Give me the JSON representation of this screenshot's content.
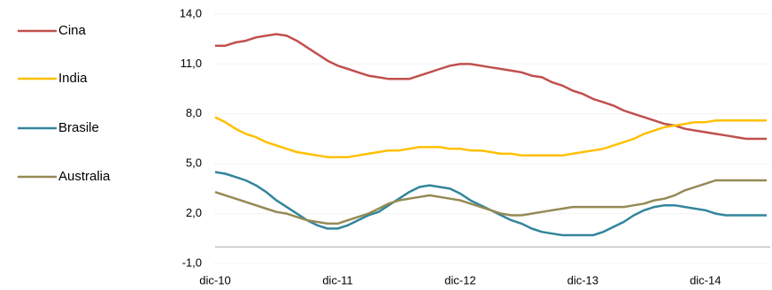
{
  "chart_data": {
    "type": "line",
    "categories": [
      "dic-10",
      null,
      null,
      null,
      null,
      null,
      null,
      null,
      null,
      null,
      null,
      null,
      "dic-11",
      null,
      null,
      null,
      null,
      null,
      null,
      null,
      null,
      null,
      null,
      null,
      "dic-12",
      null,
      null,
      null,
      null,
      null,
      null,
      null,
      null,
      null,
      null,
      null,
      "dic-13",
      null,
      null,
      null,
      null,
      null,
      null,
      null,
      null,
      null,
      null,
      null,
      "dic-14",
      null,
      null,
      null,
      null,
      null,
      null
    ],
    "series": [
      {
        "name": "Cina",
        "color": "#c0504d",
        "values": [
          12.1,
          12.1,
          12.3,
          12.4,
          12.6,
          12.7,
          12.8,
          12.7,
          12.4,
          12.0,
          11.6,
          11.2,
          10.9,
          10.7,
          10.5,
          10.3,
          10.2,
          10.1,
          10.1,
          10.1,
          10.3,
          10.5,
          10.7,
          10.9,
          11.0,
          11.0,
          10.9,
          10.8,
          10.7,
          10.6,
          10.5,
          10.3,
          10.2,
          9.9,
          9.7,
          9.4,
          9.2,
          8.9,
          8.7,
          8.5,
          8.2,
          8.0,
          7.8,
          7.6,
          7.4,
          7.3,
          7.1,
          7.0,
          6.9,
          6.8,
          6.7,
          6.6,
          6.5,
          6.5,
          6.5
        ]
      },
      {
        "name": "India",
        "color": "#ffc000",
        "values": [
          7.8,
          7.5,
          7.1,
          6.8,
          6.6,
          6.3,
          6.1,
          5.9,
          5.7,
          5.6,
          5.5,
          5.4,
          5.4,
          5.4,
          5.5,
          5.6,
          5.7,
          5.8,
          5.8,
          5.9,
          6.0,
          6.0,
          6.0,
          5.9,
          5.9,
          5.8,
          5.8,
          5.7,
          5.6,
          5.6,
          5.5,
          5.5,
          5.5,
          5.5,
          5.5,
          5.6,
          5.7,
          5.8,
          5.9,
          6.1,
          6.3,
          6.5,
          6.8,
          7.0,
          7.2,
          7.3,
          7.4,
          7.5,
          7.5,
          7.6,
          7.6,
          7.6,
          7.6,
          7.6,
          7.6
        ]
      },
      {
        "name": "Brasile",
        "color": "#31859c",
        "values": [
          4.5,
          4.4,
          4.2,
          4.0,
          3.7,
          3.3,
          2.8,
          2.4,
          2.0,
          1.6,
          1.3,
          1.1,
          1.1,
          1.3,
          1.6,
          1.9,
          2.1,
          2.5,
          2.9,
          3.3,
          3.6,
          3.7,
          3.6,
          3.5,
          3.2,
          2.8,
          2.5,
          2.2,
          1.9,
          1.6,
          1.4,
          1.1,
          0.9,
          0.8,
          0.7,
          0.7,
          0.7,
          0.7,
          0.9,
          1.2,
          1.5,
          1.9,
          2.2,
          2.4,
          2.5,
          2.5,
          2.4,
          2.3,
          2.2,
          2.0,
          1.9,
          1.9,
          1.9,
          1.9,
          1.9
        ]
      },
      {
        "name": "Australia",
        "color": "#948a54",
        "values": [
          3.3,
          3.1,
          2.9,
          2.7,
          2.5,
          2.3,
          2.1,
          2.0,
          1.8,
          1.6,
          1.5,
          1.4,
          1.4,
          1.6,
          1.8,
          2.0,
          2.3,
          2.6,
          2.8,
          2.9,
          3.0,
          3.1,
          3.0,
          2.9,
          2.8,
          2.6,
          2.4,
          2.2,
          2.0,
          1.9,
          1.9,
          2.0,
          2.1,
          2.2,
          2.3,
          2.4,
          2.4,
          2.4,
          2.4,
          2.4,
          2.4,
          2.5,
          2.6,
          2.8,
          2.9,
          3.1,
          3.4,
          3.6,
          3.8,
          4.0,
          4.0,
          4.0,
          4.0,
          4.0,
          4.0
        ]
      }
    ],
    "ylim": [
      -1,
      14
    ],
    "yticks": [
      {
        "value": -1,
        "label": "-1,0"
      },
      {
        "value": 2,
        "label": "2,0"
      },
      {
        "value": 5,
        "label": "5,0"
      },
      {
        "value": 8,
        "label": "8,0"
      },
      {
        "value": 11,
        "label": "11,0"
      },
      {
        "value": 14,
        "label": "14,0"
      }
    ],
    "grid": true
  }
}
